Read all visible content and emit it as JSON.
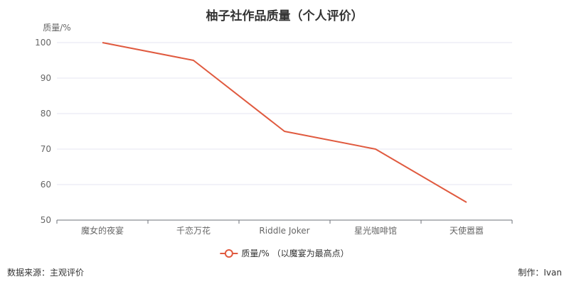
{
  "chart_data": {
    "type": "line",
    "title": "柚子社作品质量（个人评价）",
    "ylabel": "质量/%",
    "xlabel": "",
    "categories": [
      "魔女的夜宴",
      "千恋万花",
      "Riddle Joker",
      "星光咖啡馆",
      "天使嚣嚣"
    ],
    "series": [
      {
        "name": "质量/% （以魔宴为最高点）",
        "values": [
          100,
          95,
          75,
          70,
          55
        ],
        "color": "#e05a3f"
      }
    ],
    "ylim": [
      50,
      100
    ],
    "yticks": [
      50,
      60,
      70,
      80,
      90,
      100
    ],
    "grid": true,
    "legend": "bottom-center"
  },
  "footer": {
    "source": "数据来源：主观评价",
    "author": "制作：Ivan"
  },
  "colors": {
    "line": "#e05a3f",
    "grid": "#e6e6f0",
    "axis": "#6e7079"
  }
}
